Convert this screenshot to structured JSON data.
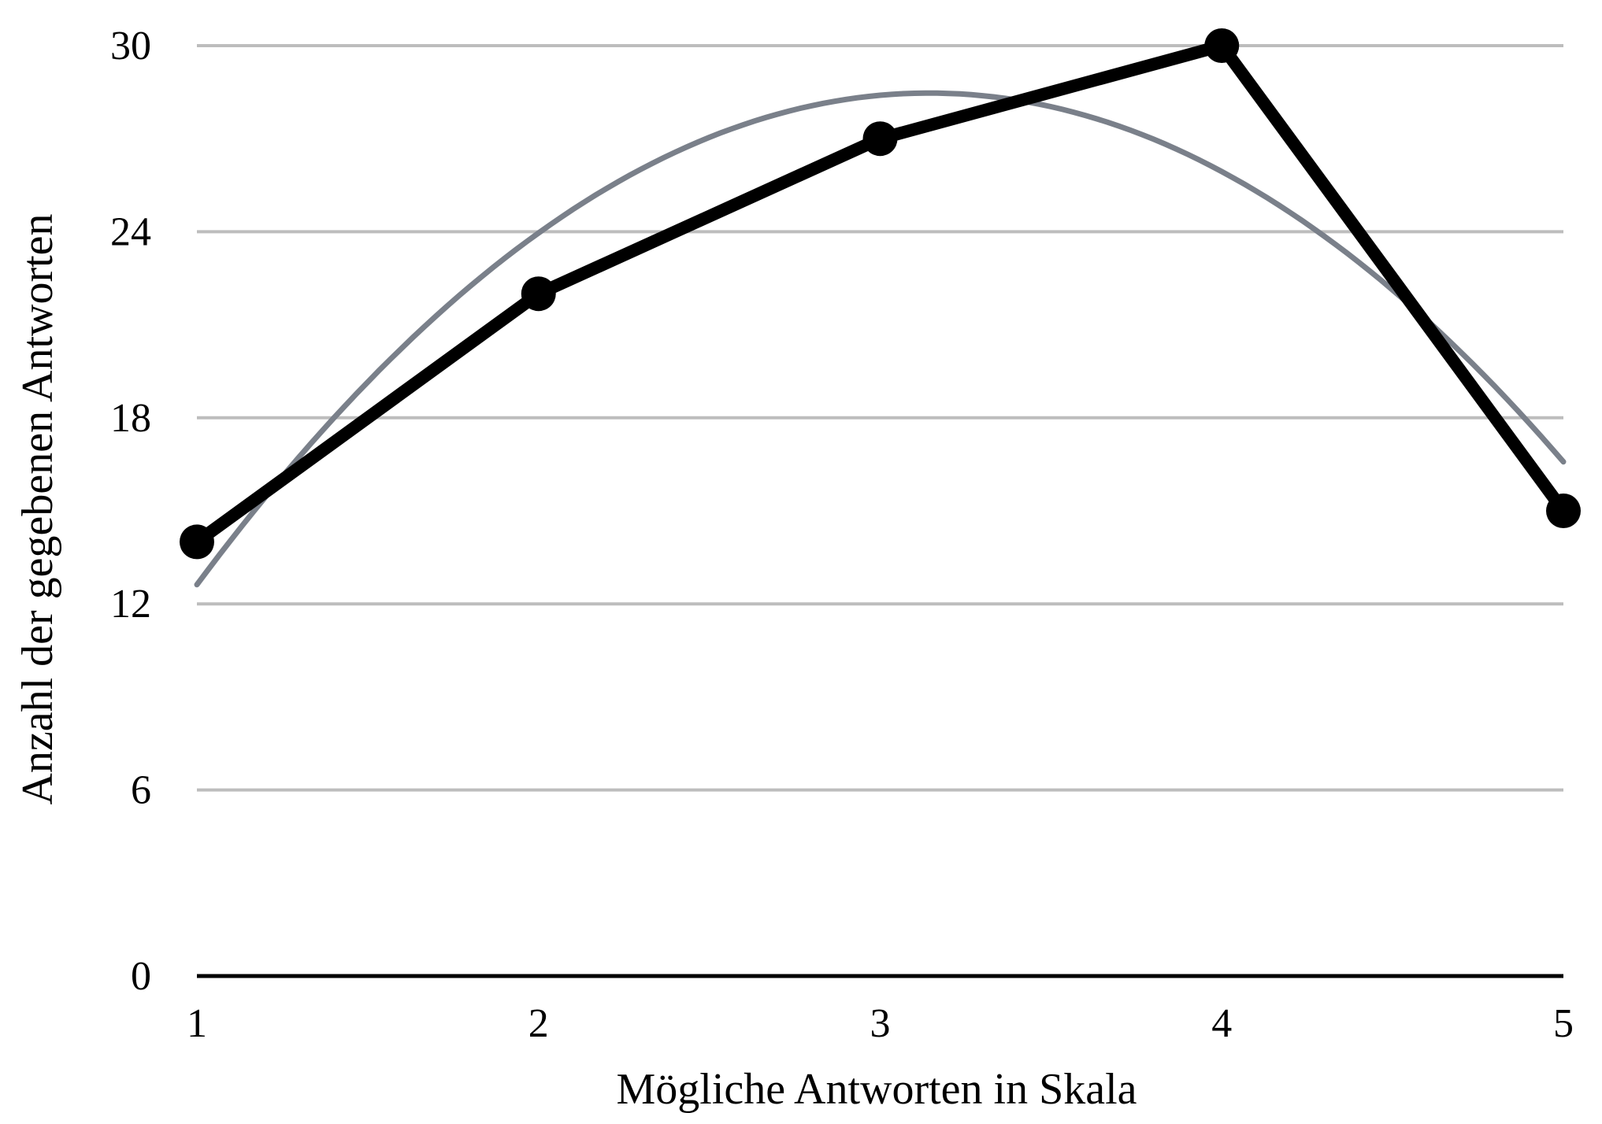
{
  "chart_data": {
    "type": "line",
    "title": "",
    "xlabel": "Mögliche Antworten in Skala",
    "ylabel": "Anzahl der gegebenen Antworten",
    "x": [
      1,
      2,
      3,
      4,
      5
    ],
    "xticks": [
      "1",
      "2",
      "3",
      "4",
      "5"
    ],
    "yticks": [
      "0",
      "6",
      "12",
      "18",
      "24",
      "30"
    ],
    "ylim": [
      0,
      30
    ],
    "xlim": [
      1,
      5
    ],
    "grid": "horizontal",
    "series": [
      {
        "values": [
          14,
          22,
          27,
          30,
          15
        ],
        "color": "#000000",
        "markers": true
      }
    ],
    "trendline": {
      "kind": "polynomial (order 2)",
      "color": "#7a808a",
      "values": [
        12.6,
        24.0,
        28.4,
        25.9,
        16.6
      ]
    },
    "colors": {
      "grid": "#bdbdbd",
      "axis": "#000000"
    }
  }
}
